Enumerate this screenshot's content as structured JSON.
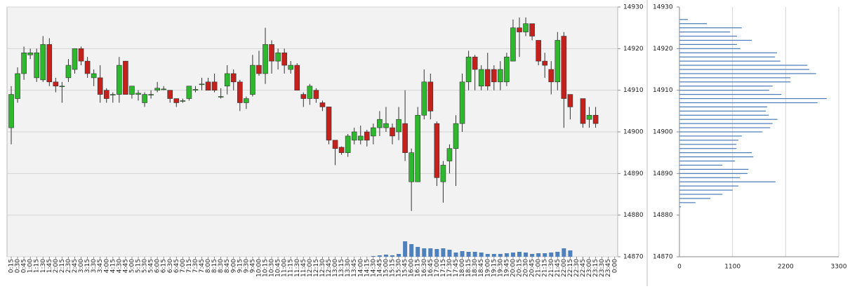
{
  "chart_data": [
    {
      "type": "candlestick",
      "categories": [
        "0:15",
        "0:30",
        "0:45",
        "1:00",
        "1:15",
        "1:30",
        "1:45",
        "2:00",
        "2:15",
        "2:30",
        "2:45",
        "3:00",
        "3:15",
        "3:30",
        "3:45",
        "4:00",
        "4:15",
        "4:30",
        "4:45",
        "5:00",
        "5:15",
        "5:30",
        "5:45",
        "6:00",
        "6:15",
        "6:30",
        "6:45",
        "7:00",
        "7:15",
        "7:30",
        "7:45",
        "8:00",
        "8:15",
        "8:30",
        "8:45",
        "9:00",
        "9:15",
        "9:30",
        "9:45",
        "10:00",
        "10:15",
        "10:30",
        "10:45",
        "11:00",
        "11:15",
        "11:30",
        "11:45",
        "12:00",
        "12:15",
        "12:30",
        "12:45",
        "13:00",
        "13:15",
        "13:30",
        "13:45",
        "14:00",
        "14:15",
        "14:30",
        "14:45",
        "15:00",
        "15:15",
        "15:30",
        "15:45",
        "16:00",
        "16:15",
        "16:30",
        "16:45",
        "17:00",
        "17:15",
        "17:30",
        "17:45",
        "18:00",
        "18:15",
        "18:30",
        "18:45",
        "19:00",
        "19:15",
        "19:30",
        "19:45",
        "20:00",
        "20:15",
        "20:30",
        "20:45",
        "21:00",
        "21:15",
        "21:30",
        "21:45",
        "22:00",
        "22:15",
        "22:30",
        "22:45",
        "23:00",
        "23:15",
        "23:30",
        "23:45",
        "0:00"
      ],
      "open": [
        14901,
        14908,
        14914,
        14918.5,
        14913,
        14912.5,
        14921,
        14912,
        14911,
        14913,
        14915,
        14920,
        14917,
        14913,
        14913,
        14910,
        14909,
        14909,
        14917,
        14909,
        14909,
        14907,
        14909,
        14910,
        14910.3,
        14910,
        14908,
        14907.5,
        14908,
        14910,
        14911.5,
        14912,
        14912,
        14908.5,
        14911,
        14914,
        14912,
        14907,
        14909,
        14916,
        14914,
        14921,
        14917,
        14919,
        14915,
        14916,
        14909,
        14908,
        14910,
        14907,
        14906,
        14898,
        14896.3,
        14895,
        14898,
        14898,
        14900,
        14899,
        14901,
        14901,
        14901,
        14900,
        14902,
        14888,
        14888,
        14904,
        14912,
        14902,
        14888,
        14893,
        14896,
        14902,
        14912,
        14918,
        14911,
        14915,
        14915,
        14912,
        14912,
        14917,
        14925,
        14924,
        14926,
        14922,
        14917,
        14915,
        14912,
        14923,
        14909,
        null,
        14908,
        14903,
        14904,
        null,
        null,
        null
      ],
      "high": [
        14911,
        14915.5,
        14920.5,
        14920,
        14920,
        14923,
        14922.5,
        14913,
        14912,
        14917.5,
        14920,
        14920.5,
        14918,
        14915,
        14916,
        14910.5,
        14909.5,
        14918,
        14917,
        14911,
        14910,
        14909.5,
        14910,
        14912,
        14911,
        14910,
        14908,
        14908,
        14911,
        14911,
        14913,
        14913,
        14914,
        14910.5,
        14916,
        14915,
        14912.5,
        14908.5,
        14918.5,
        14919.5,
        14925,
        14922,
        14920,
        14920,
        14917,
        14916.5,
        14909.5,
        14911.5,
        14910.5,
        14907.5,
        14906,
        14898,
        14896.5,
        14899.5,
        14901,
        14901.5,
        14900.5,
        14902,
        14905,
        14906,
        14902,
        14906,
        14910,
        14896,
        14906,
        14915,
        14914,
        14902.5,
        14893,
        14897,
        14904,
        14914,
        14919.5,
        14918.5,
        14916,
        14919,
        14916,
        14917,
        14919,
        14927,
        14927.5,
        14927.5,
        14926,
        14922,
        14919,
        14917,
        14924,
        14924,
        14909,
        null,
        14908,
        14906,
        14906,
        null,
        null,
        null
      ],
      "low": [
        14897,
        14907,
        14912.5,
        14917.5,
        14912,
        14912,
        14911,
        14909.5,
        14907,
        14912,
        14914,
        14916,
        14913,
        14911,
        14907,
        14907,
        14907,
        14907,
        14909,
        14908,
        14907.5,
        14906,
        14908,
        14909.5,
        14910,
        14907,
        14906,
        14907,
        14907.5,
        14909.5,
        14910,
        14910,
        14909.5,
        14908,
        14909,
        14910,
        14905,
        14905.5,
        14908.5,
        14913.5,
        14911.5,
        14914,
        14915,
        14914,
        14914,
        14910,
        14906,
        14906.5,
        14907,
        14905,
        14897,
        14892,
        14894.5,
        14894,
        14897,
        14897,
        14896.5,
        14897,
        14899,
        14900,
        14897,
        14898,
        14893,
        14881,
        14888,
        14903,
        14903,
        14887,
        14883,
        14890,
        14887,
        14900,
        14910,
        14910,
        14910,
        14910,
        14910,
        14910,
        14911,
        14917,
        14918,
        14923,
        14922,
        14916,
        14913,
        14909,
        14910,
        14901,
        14903,
        null,
        14901,
        14901,
        14901,
        null,
        null,
        null
      ],
      "close": [
        14909,
        14914,
        14919,
        14919,
        14919,
        14921,
        14912,
        14911,
        14911,
        14916,
        14920,
        14917,
        14914,
        14914,
        14909,
        14908,
        14909,
        14916,
        14909,
        14911,
        14909.3,
        14909,
        14909,
        14910.5,
        14910.3,
        14908,
        14907,
        14907.5,
        14911,
        14910.2,
        14911.5,
        14910,
        14910,
        14908.5,
        14914,
        14912,
        14907,
        14908,
        14916,
        14914,
        14921,
        14917,
        14919,
        14916,
        14916,
        14910,
        14908,
        14911,
        14908,
        14906,
        14898,
        14896,
        14895,
        14899,
        14900,
        14899,
        14898,
        14901,
        14903,
        14902,
        14899,
        14903,
        14895,
        14895,
        14904,
        14912,
        14905,
        14889,
        14892,
        14896,
        14902,
        14912,
        14918,
        14915,
        14915,
        14911,
        14912,
        14915,
        14918,
        14925,
        14924,
        14926,
        14923,
        14917,
        14916,
        14912,
        14922,
        14908,
        14906,
        null,
        14902,
        14904,
        14902,
        null,
        null,
        null
      ],
      "volume": [
        0,
        0,
        0,
        0,
        0,
        0,
        0,
        0,
        0,
        0,
        0,
        0,
        0,
        0,
        0,
        0,
        0,
        0,
        0,
        0,
        0,
        0,
        0,
        0,
        0,
        0,
        0,
        0,
        0,
        0,
        0,
        0,
        0,
        0,
        0,
        0,
        0,
        0,
        0,
        0,
        0,
        0,
        0,
        0,
        0,
        0,
        0,
        0,
        0,
        0,
        0,
        0,
        0,
        0,
        0,
        0,
        0,
        1,
        2,
        3,
        2,
        4,
        22,
        18,
        14,
        12,
        12,
        11,
        12,
        10,
        6,
        8,
        7,
        7,
        6,
        4,
        4,
        4,
        5,
        6,
        7,
        6,
        4,
        5,
        5,
        6,
        7,
        12,
        9,
        null,
        0,
        0,
        0,
        null,
        null,
        null
      ],
      "ylim": [
        14870,
        14930
      ],
      "yticks": [
        14870,
        14880,
        14890,
        14900,
        14910,
        14920,
        14930
      ],
      "up_color": "#2eb82e",
      "down_color": "#c4201c",
      "volume_color": "#4f81bd",
      "grid": true
    },
    {
      "type": "bar",
      "horizontal": true,
      "levels": [
        14927,
        14926,
        14925,
        14924,
        14923,
        14922,
        14921,
        14920,
        14919,
        14918,
        14917,
        14916,
        14915,
        14914,
        14913,
        14912,
        14911,
        14910,
        14909,
        14908,
        14907,
        14906,
        14905,
        14904,
        14903,
        14902,
        14901,
        14900,
        14899,
        14898,
        14897,
        14896,
        14895,
        14894,
        14893,
        14892,
        14891,
        14890,
        14889,
        14888,
        14887,
        14886,
        14885,
        14884,
        14883,
        14882
      ],
      "values": [
        175,
        570,
        1290,
        1050,
        1190,
        1500,
        1190,
        1260,
        2020,
        1980,
        2090,
        2650,
        2690,
        2830,
        2300,
        2300,
        1930,
        1860,
        2110,
        3050,
        2860,
        1820,
        1790,
        1850,
        2030,
        1930,
        1880,
        1720,
        1290,
        1220,
        1180,
        1180,
        1500,
        1530,
        1150,
        890,
        1430,
        1410,
        1250,
        1990,
        1220,
        1100,
        890,
        640,
        330,
        30
      ],
      "xlim": [
        0,
        3300
      ],
      "xticks": [
        0,
        1100,
        2200,
        3300
      ],
      "ylim": [
        14870,
        14930
      ],
      "yticks": [
        14870,
        14880,
        14890,
        14900,
        14910,
        14920,
        14930
      ],
      "color": "#4a7ab8",
      "grid": true
    }
  ]
}
